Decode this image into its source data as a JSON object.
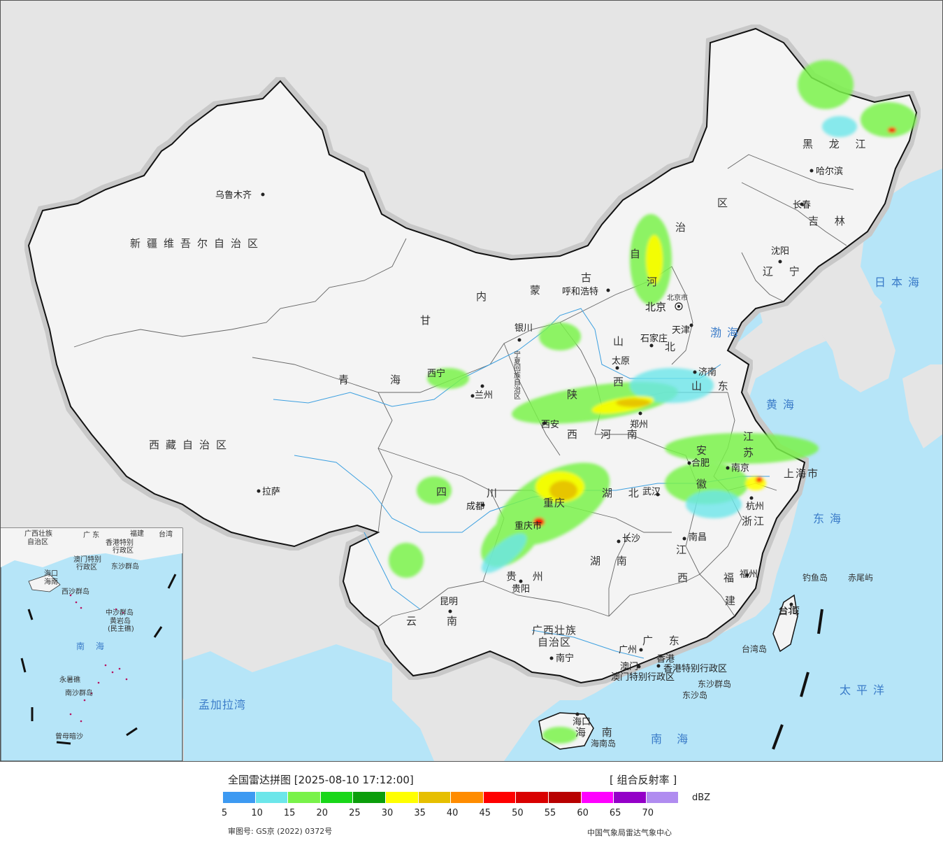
{
  "legend": {
    "title": "全国雷达拼图 [2025-08-10 17:12:00]",
    "product": "[ 组合反射率 ]",
    "unit": "dBZ",
    "ticks": [
      "5",
      "10",
      "15",
      "20",
      "25",
      "30",
      "35",
      "40",
      "45",
      "50",
      "55",
      "60",
      "65",
      "70"
    ],
    "colors": [
      "#3d9af2",
      "#6ce6ea",
      "#79f24a",
      "#19d719",
      "#0b9e0b",
      "#ffff00",
      "#e6bf00",
      "#ff8c00",
      "#ff0000",
      "#d90000",
      "#b80000",
      "#ff00ff",
      "#9400c8",
      "#b08cf0"
    ]
  },
  "footer": {
    "approval": "审图号: GS京 (2022) 0372号",
    "org": "中国气象局雷达气象中心"
  },
  "provinces": {
    "xinjiang": "新疆维吾尔自治区",
    "xizang": "西藏自治区",
    "qinghai_1": "青",
    "qinghai_2": "海",
    "gansu": "甘",
    "sichuan": "四",
    "chuan": "川",
    "yunnan_1": "云",
    "yunnan_2": "南",
    "guizhou": "贵  州",
    "guangxi_1": "广西壮族",
    "guangxi_2": "自治区",
    "guangdong": "广  东",
    "hunan": "湖  南",
    "hubei": "湖  北",
    "jiangxi_1": "江",
    "jiangxi_2": "西",
    "fujian_1": "福",
    "fujian_2": "建",
    "zhejiang": "浙江",
    "anhui_1": "安",
    "anhui_2": "徽",
    "jiangsu_1": "江",
    "jiangsu_2": "苏",
    "shanghai": "上海市",
    "shandong": "山  东",
    "henan": "河  南",
    "shaanxi_1": "陕",
    "shaanxi_2": "西",
    "shanxi_1": "山",
    "shanxi_2": "西",
    "hebei_1": "河",
    "hebei_2": "北",
    "beijing": "北京",
    "beijing_city": "北京市",
    "tianjin": "天津",
    "neimenggu_1": "内",
    "neimenggu_2": "蒙",
    "neimenggu_3": "古",
    "neimenggu_4": "自",
    "neimenggu_5": "治",
    "neimenggu_6": "区",
    "ningxia": "宁夏回族自治区",
    "liaoning": "辽  宁",
    "jilin": "吉  林",
    "heilongjiang": "黑 龙 江",
    "chongqing": "重庆",
    "chongqing_city": "重庆市",
    "hainan": "海  南",
    "taiwan": "台湾",
    "xianggang": "香港特别行政区",
    "aomen": "澳门特别行政区"
  },
  "cities": {
    "urumqi": "乌鲁木齐",
    "lhasa": "拉萨",
    "xining": "西宁",
    "lanzhou": "兰州",
    "yinchuan": "银川",
    "huhehaote": "呼和浩特",
    "taiyuan": "太原",
    "shijiazhuang": "石家庄",
    "jinan": "济南",
    "zhengzhou": "郑州",
    "xian": "西安",
    "chengdu": "成都",
    "guiyang": "贵阳",
    "kunming": "昆明",
    "nanning": "南宁",
    "guangzhou": "广州",
    "xianggang_city": "香港",
    "aomen_city": "澳门",
    "haikou": "海口",
    "changsha": "长沙",
    "wuhan": "武汉",
    "nanchang": "南昌",
    "fuzhou": "福州",
    "hangzhou": "杭州",
    "hefei": "合肥",
    "nanjing": "南京",
    "shenyang": "沈阳",
    "changchun": "长春",
    "haerbin": "哈尔滨",
    "taibei": "台北"
  },
  "seas": {
    "bohai": "渤海",
    "huanghai": "黄海",
    "donghai": "东海",
    "nanhai": "南  海",
    "taipingyang": "太平洋",
    "ribenhai": "日本海",
    "mengjialawan": "孟加拉湾"
  },
  "islands": {
    "diaoyudao": "钓鱼岛",
    "chiweiyu": "赤尾屿",
    "taiwandao": "台湾岛",
    "hainandao": "海南岛",
    "dongshaqundao": "东沙群岛",
    "dongshadao": "东沙岛"
  },
  "inset": {
    "guangxi_1": "广西壮族",
    "guangxi_2": "自治区",
    "guangdong": "广  东",
    "fujian": "福建",
    "taiwan": "台湾",
    "xianggang_1": "香港特别",
    "xianggang_2": "行政区",
    "aomen_1": "澳门特别",
    "aomen_2": "行政区",
    "dongsha": "东沙群岛",
    "haikou": "海口",
    "hainan": "海南",
    "xisha": "西沙群岛",
    "zhongsha": "中沙群岛",
    "huangyandao_1": "黄岩岛",
    "huangyandao_2": "(民主礁)",
    "nanhai": "南  海",
    "nansha": "南沙群岛",
    "yongshu": "永暑礁",
    "zengmu": "曾母暗沙"
  }
}
